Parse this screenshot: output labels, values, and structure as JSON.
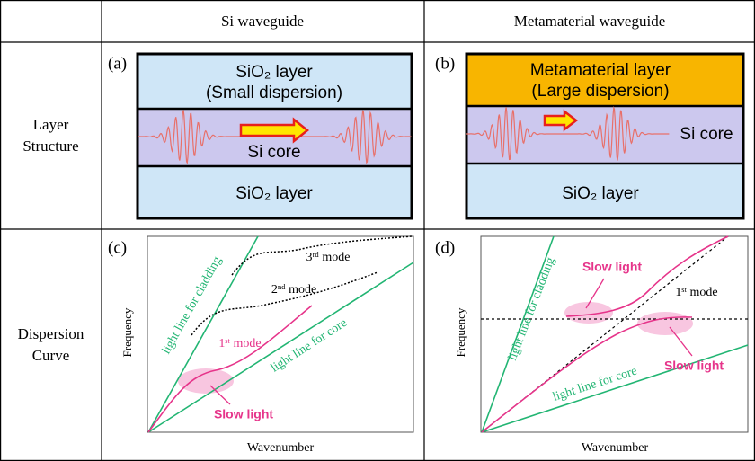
{
  "table": {
    "columns": [
      "Si waveguide",
      "Metamaterial waveguide"
    ],
    "rows": [
      "Layer Structure",
      "Dispersion Curve"
    ]
  },
  "panels": [
    {
      "tag": "(a)",
      "top_line1": "SiO₂ layer",
      "top_line2": "(Small dispersion)",
      "core": "Si core",
      "bottom": "SiO₂ layer"
    },
    {
      "tag": "(b)",
      "top_line1": "Metamaterial layer",
      "top_line2": "(Large dispersion)",
      "core": "Si core",
      "bottom": "SiO₂ layer"
    },
    {
      "tag": "(c)",
      "y_label": "Frequency",
      "x_label": "Wavenumber",
      "cladding_line": "light line for cladding",
      "core_line": "light line for core",
      "modes": [
        "1ˢᵗ mode",
        "2ⁿᵈ mode",
        "3ʳᵈ mode"
      ],
      "slow_light": "Slow light"
    },
    {
      "tag": "(d)",
      "y_label": "Frequency",
      "x_label": "Wavenumber",
      "cladding_line": "light line for cladding",
      "core_line": "light line for core",
      "mode": "1ˢᵗ mode",
      "slow_light": [
        "Slow light",
        "Slow light"
      ]
    }
  ]
}
